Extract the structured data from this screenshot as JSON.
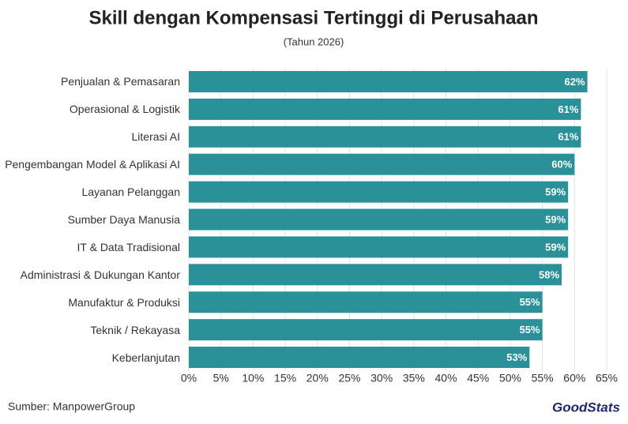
{
  "chart_data": {
    "type": "hbar",
    "title": "Skill dengan Kompensasi Tertinggi di Perusahaan",
    "subtitle": "(Tahun 2026)",
    "source": "Sumber: ManpowerGroup",
    "logo": "GoodStats",
    "categories": [
      "Penjualan & Pemasaran",
      "Operasional & Logistik",
      "Literasi AI",
      "Pengembangan Model & Aplikasi AI",
      "Layanan Pelanggan",
      "Sumber Daya Manusia",
      "IT & Data Tradisional",
      "Administrasi & Dukungan Kantor",
      "Manufaktur & Produksi",
      "Teknik / Rekayasa",
      "Keberlanjutan"
    ],
    "values": [
      62,
      61,
      61,
      60,
      59,
      59,
      59,
      58,
      55,
      55,
      53
    ],
    "value_labels": [
      "62%",
      "61%",
      "61%",
      "60%",
      "59%",
      "59%",
      "59%",
      "58%",
      "55%",
      "55%",
      "53%"
    ],
    "color": "#2b9199",
    "xlim": [
      0,
      65
    ],
    "xticks": [
      {
        "value": 0,
        "label": "0%"
      },
      {
        "value": 5,
        "label": "5%"
      },
      {
        "value": 10,
        "label": "10%"
      },
      {
        "value": 15,
        "label": "15%"
      },
      {
        "value": 20,
        "label": "20%"
      },
      {
        "value": 25,
        "label": "25%"
      },
      {
        "value": 30,
        "label": "30%"
      },
      {
        "value": 35,
        "label": "35%"
      },
      {
        "value": 40,
        "label": "40%"
      },
      {
        "value": 45,
        "label": "45%"
      },
      {
        "value": 50,
        "label": "50%"
      },
      {
        "value": 55,
        "label": "55%"
      },
      {
        "value": 60,
        "label": "60%"
      },
      {
        "value": 65,
        "label": "65%"
      }
    ],
    "grid": true
  }
}
